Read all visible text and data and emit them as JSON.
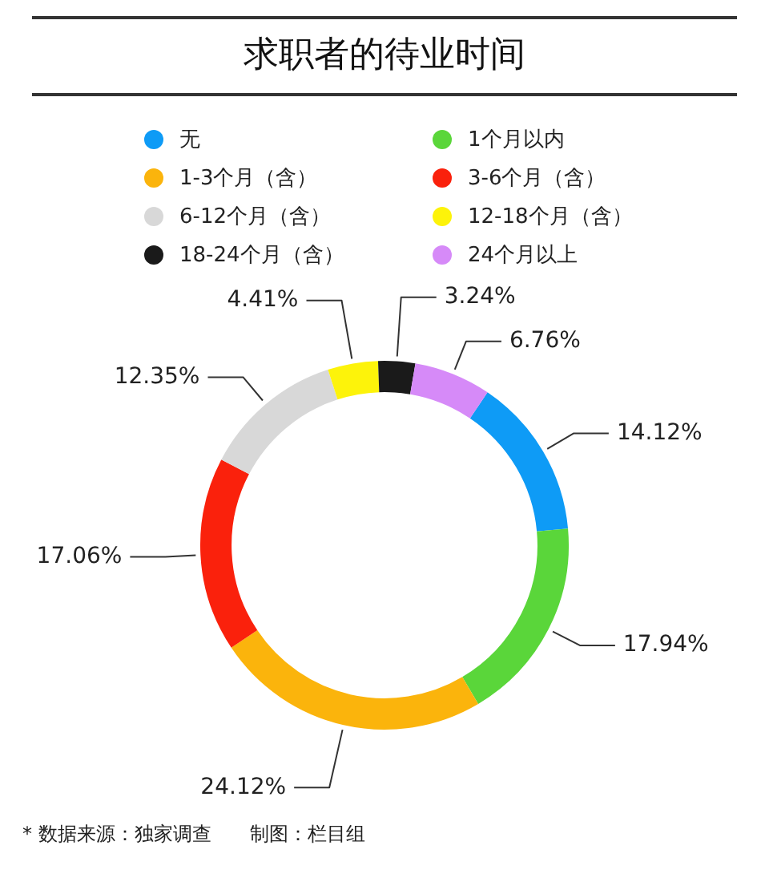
{
  "chart_data": {
    "type": "donut",
    "title": "求职者的待业时间",
    "categories": [
      "无",
      "1个月以内",
      "1-3个月（含）",
      "3-6个月（含）",
      "6-12个月（含）",
      "12-18个月（含）",
      "18-24个月（含）",
      "24个月以上"
    ],
    "values": [
      14.12,
      17.94,
      24.12,
      17.06,
      12.35,
      4.41,
      3.24,
      6.76
    ],
    "colors": [
      "#0e9bf6",
      "#5ad63a",
      "#fbb40c",
      "#fa210c",
      "#d8d8d8",
      "#fdf30a",
      "#1a1a1a",
      "#d68af8"
    ],
    "value_labels": [
      "14.12%",
      "17.94%",
      "24.12%",
      "17.06%",
      "12.35%",
      "4.41%",
      "3.24%",
      "6.76%"
    ],
    "legend": "top",
    "annotations": [
      "* 数据来源：独家调查　　制图：栏目组"
    ]
  }
}
